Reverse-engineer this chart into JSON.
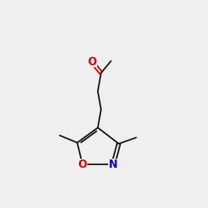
{
  "bg_color": "#efefef",
  "bond_color": "#1a1a1a",
  "o_color": "#dd0000",
  "n_color": "#0000cc",
  "lw": 1.6,
  "fs_on": 11,
  "figsize": [
    3.0,
    3.0
  ],
  "dpi": 100,
  "xlim": [
    0,
    10
  ],
  "ylim": [
    0,
    10
  ]
}
